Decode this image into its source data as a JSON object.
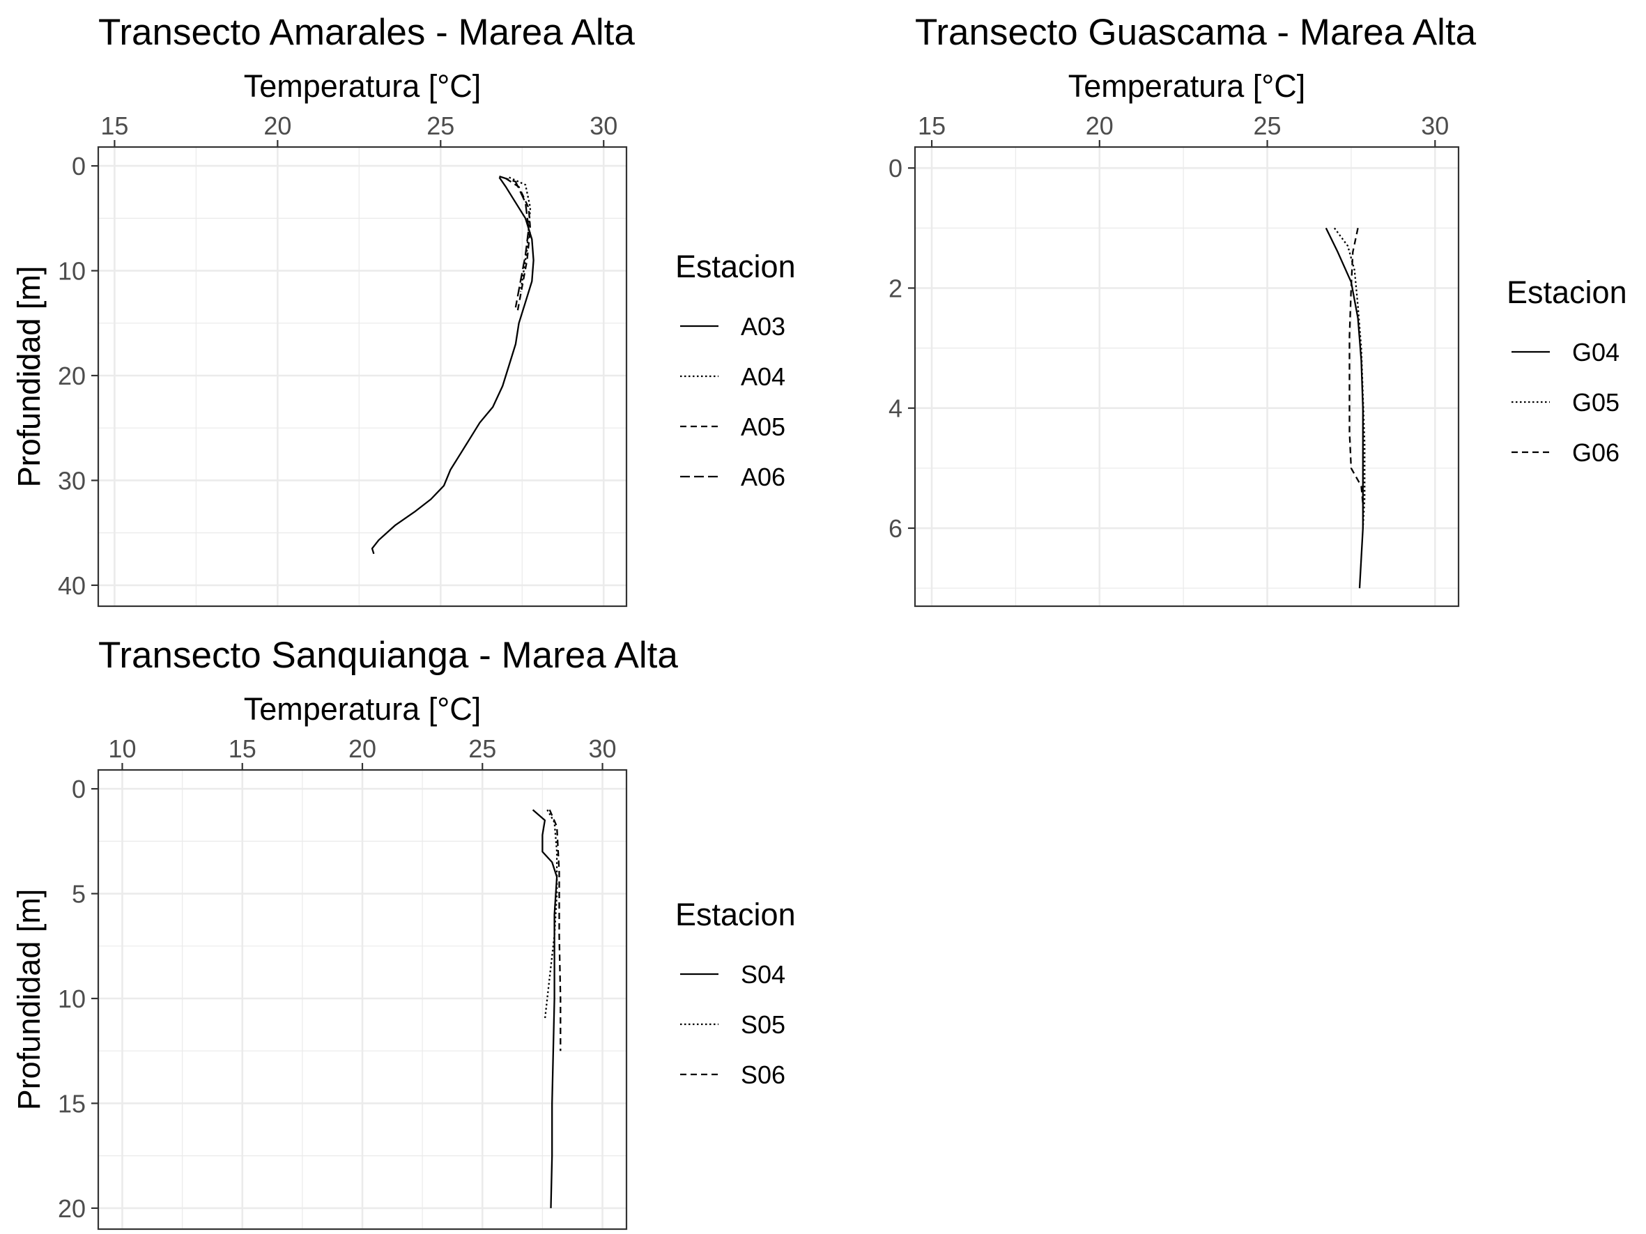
{
  "chart_data": [
    {
      "type": "line",
      "title": "Transecto Amarales - Marea Alta",
      "xlabel": "Temperatura [°C]",
      "ylabel": "Profundidad [m]",
      "x_axis_position": "top",
      "y_axis_reversed": true,
      "xlim": [
        14.5,
        30.7
      ],
      "ylim": [
        -1.8,
        42
      ],
      "x_ticks": [
        15,
        20,
        25,
        30
      ],
      "y_ticks": [
        0,
        10,
        20,
        30,
        40
      ],
      "grid": true,
      "legend": {
        "title": "Estacion",
        "position": "right"
      },
      "series": [
        {
          "name": "A03",
          "linetype": "solid",
          "x": [
            26.8,
            27.0,
            27.2,
            27.6,
            27.8,
            27.85,
            27.8,
            27.6,
            27.4,
            27.3,
            27.1,
            26.9,
            26.6,
            26.2,
            25.9,
            25.6,
            25.3,
            25.1,
            24.7,
            24.2,
            23.6,
            23.1,
            22.9,
            22.95
          ],
          "y": [
            1.1,
            2,
            3,
            5,
            7,
            9,
            11,
            13,
            15,
            17,
            19,
            21,
            23,
            24.5,
            26,
            27.5,
            29,
            30.5,
            31.8,
            33,
            34.3,
            35.7,
            36.5,
            37
          ]
        },
        {
          "name": "A04",
          "linetype": "dotted",
          "x": [
            27.1,
            27.6,
            27.75,
            27.7,
            27.65,
            27.55,
            27.45
          ],
          "y": [
            1.1,
            1.8,
            4,
            6,
            8,
            10,
            12
          ]
        },
        {
          "name": "A05",
          "linetype": "dashed",
          "x": [
            27.0,
            27.4,
            27.7,
            27.75,
            27.65,
            27.5,
            27.35
          ],
          "y": [
            1.2,
            2,
            4,
            6,
            9,
            11.5,
            14
          ]
        },
        {
          "name": "A06",
          "linetype": "longdash",
          "x": [
            26.8,
            27.3,
            27.6,
            27.7,
            27.6,
            27.45,
            27.3
          ],
          "y": [
            1.0,
            1.5,
            3.5,
            6,
            8.5,
            11,
            13.5
          ]
        }
      ]
    },
    {
      "type": "line",
      "title": "Transecto Guascama - Marea Alta",
      "xlabel": "Temperatura [°C]",
      "ylabel": "Profundidad [m]",
      "x_axis_position": "top",
      "y_axis_reversed": true,
      "xlim": [
        14.5,
        30.7
      ],
      "ylim": [
        -0.35,
        7.3
      ],
      "x_ticks": [
        15,
        20,
        25,
        30
      ],
      "y_ticks": [
        0,
        2,
        4,
        6
      ],
      "grid": true,
      "legend": {
        "title": "Estacion",
        "position": "right"
      },
      "series": [
        {
          "name": "G04",
          "linetype": "solid",
          "x": [
            26.75,
            27.1,
            27.5,
            27.7,
            27.8,
            27.85,
            27.85,
            27.85,
            27.8,
            27.75
          ],
          "y": [
            1.0,
            1.4,
            1.9,
            2.5,
            3.2,
            4.0,
            5.0,
            6.0,
            6.5,
            7.0
          ]
        },
        {
          "name": "G05",
          "linetype": "dotted",
          "x": [
            27.0,
            27.4,
            27.6,
            27.7,
            27.8,
            27.85,
            27.9,
            27.9,
            27.85
          ],
          "y": [
            1.0,
            1.3,
            1.7,
            2.3,
            3.0,
            3.8,
            4.6,
            5.5,
            6.0
          ]
        },
        {
          "name": "G06",
          "linetype": "dashed",
          "x": [
            27.7,
            27.55,
            27.5,
            27.45,
            27.45,
            27.45,
            27.5,
            27.8,
            27.85
          ],
          "y": [
            1.0,
            1.4,
            2.0,
            2.8,
            3.6,
            4.4,
            5.0,
            5.3,
            5.6
          ]
        }
      ]
    },
    {
      "type": "line",
      "title": "Transecto Sanquianga - Marea Alta",
      "xlabel": "Temperatura [°C]",
      "ylabel": "Profundidad [m]",
      "x_axis_position": "top",
      "y_axis_reversed": true,
      "xlim": [
        9.0,
        31.0
      ],
      "ylim": [
        -0.9,
        21
      ],
      "x_ticks": [
        10,
        15,
        20,
        25,
        30
      ],
      "y_ticks": [
        0,
        5,
        10,
        15,
        20
      ],
      "grid": true,
      "legend": {
        "title": "Estacion",
        "position": "right"
      },
      "series": [
        {
          "name": "S04",
          "linetype": "solid",
          "x": [
            27.1,
            27.6,
            27.5,
            27.5,
            27.9,
            28.1,
            28.0,
            28.0,
            28.0,
            27.95,
            27.9,
            27.9,
            27.85
          ],
          "y": [
            1.0,
            1.5,
            2.2,
            3.0,
            3.5,
            4.2,
            6.0,
            8.0,
            10.0,
            12.5,
            15.0,
            17.5,
            20.0
          ]
        },
        {
          "name": "S05",
          "linetype": "dotted",
          "x": [
            27.7,
            28.0,
            28.1,
            28.1,
            28.0,
            27.8,
            27.6
          ],
          "y": [
            1.0,
            1.6,
            3.0,
            5.0,
            7.0,
            9.0,
            11.0
          ]
        },
        {
          "name": "S06",
          "linetype": "dashed",
          "x": [
            27.8,
            28.1,
            28.2,
            28.2,
            28.25,
            28.25
          ],
          "y": [
            1.0,
            1.8,
            4.0,
            7.0,
            10.0,
            12.5
          ]
        }
      ]
    }
  ]
}
